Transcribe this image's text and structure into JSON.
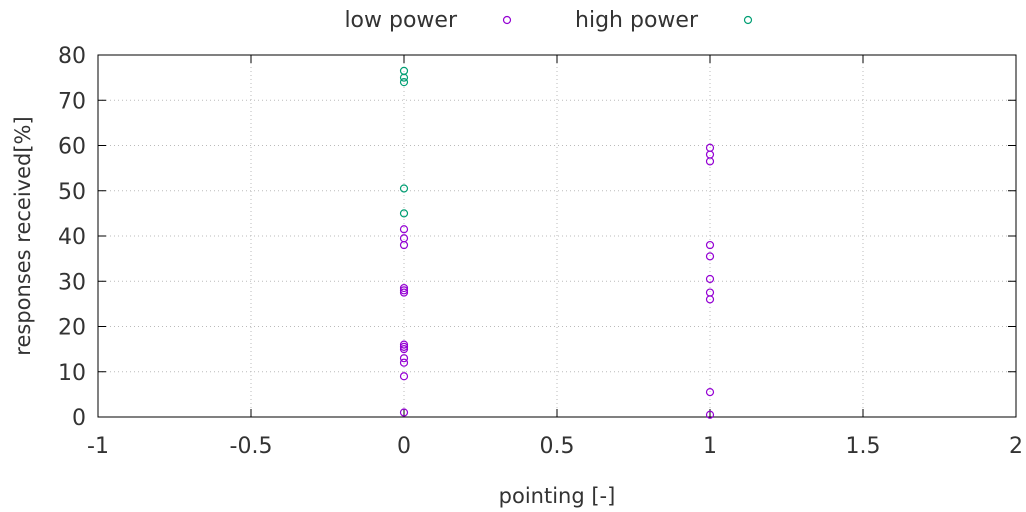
{
  "chart_data": {
    "type": "scatter",
    "xlabel": "pointing [-]",
    "ylabel": "responses received[%]",
    "xlim": [
      -1,
      2
    ],
    "ylim": [
      0,
      80
    ],
    "x_ticks": [
      "-1",
      "-0.5",
      "0",
      "0.5",
      "1",
      "1.5",
      "2"
    ],
    "y_ticks": [
      "0",
      "10",
      "20",
      "30",
      "40",
      "50",
      "60",
      "70",
      "80"
    ],
    "grid": true,
    "legend_position": "top-center",
    "series": [
      {
        "name": "low power",
        "color": "#9400d3",
        "marker": "open-circle",
        "points": [
          [
            0,
            1
          ],
          [
            0,
            9
          ],
          [
            0,
            12
          ],
          [
            0,
            13
          ],
          [
            0,
            15
          ],
          [
            0,
            15.5
          ],
          [
            0,
            16
          ],
          [
            0,
            27.5
          ],
          [
            0,
            28
          ],
          [
            0,
            28.5
          ],
          [
            0,
            38
          ],
          [
            0,
            39.5
          ],
          [
            0,
            41.5
          ],
          [
            1,
            0.5
          ],
          [
            1,
            5.5
          ],
          [
            1,
            26
          ],
          [
            1,
            27.5
          ],
          [
            1,
            30.5
          ],
          [
            1,
            35.5
          ],
          [
            1,
            38
          ],
          [
            1,
            56.5
          ],
          [
            1,
            58
          ],
          [
            1,
            59.5
          ]
        ]
      },
      {
        "name": "high power",
        "color": "#009e73",
        "marker": "open-circle",
        "points": [
          [
            0,
            45
          ],
          [
            0,
            50.5
          ],
          [
            0,
            74
          ],
          [
            0,
            75
          ],
          [
            0,
            76.5
          ]
        ]
      }
    ]
  }
}
